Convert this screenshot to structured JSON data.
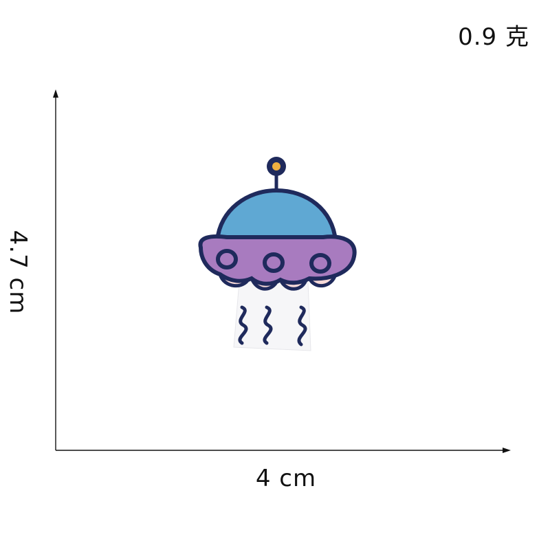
{
  "weight_label": "0.9 克",
  "width_label": "4 cm",
  "height_label": "4.7 cm",
  "colors": {
    "outline": "#1f2a5c",
    "dome": "#5fa8d3",
    "saucer": "#a87bbf",
    "antenna_light": "#f0b040",
    "beam": "#f6f6f8",
    "cup": "#f6d9d8"
  },
  "icons": [
    "ufo-patch"
  ]
}
